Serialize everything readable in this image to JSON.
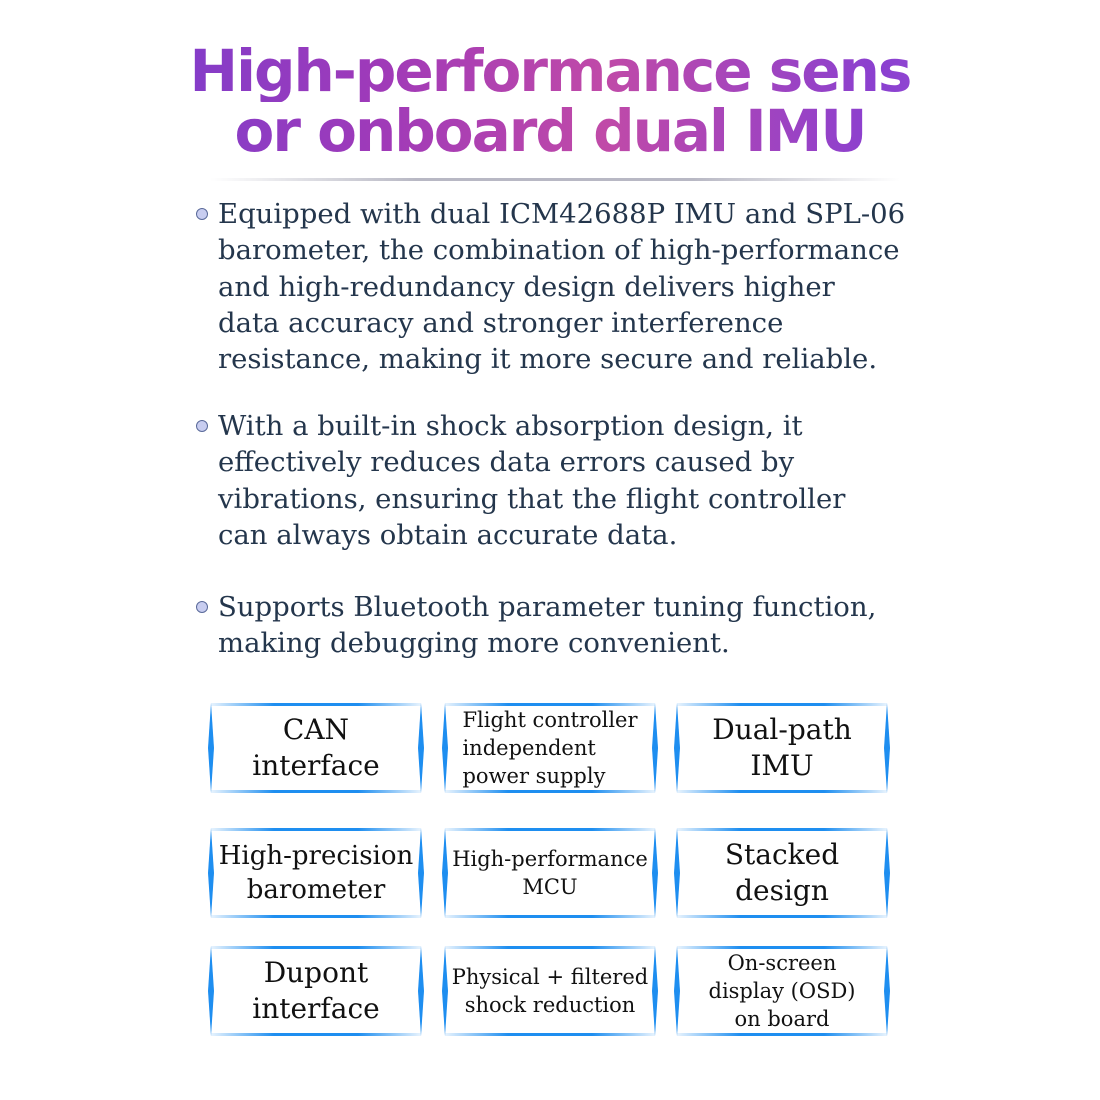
{
  "title": {
    "line1": "High-performance sens",
    "line2": "or onboard dual IMU"
  },
  "bullets": [
    [
      "Equipped with dual ICM42688P IMU and SPL-06",
      "barometer, the combination of high-performance",
      "and high-redundancy design delivers higher",
      "data accuracy and stronger interference",
      "resistance, making it more secure and reliable."
    ],
    [
      "With a built-in shock absorption design, it",
      "effectively reduces data errors caused by",
      "vibrations, ensuring that the flight controller",
      "can always obtain accurate data."
    ],
    [
      "Supports Bluetooth parameter tuning function,",
      "making debugging more convenient."
    ]
  ],
  "features": [
    [
      "CAN",
      "interface"
    ],
    [
      "Flight controller",
      "independent",
      "power supply"
    ],
    [
      "Dual-path",
      "IMU"
    ],
    [
      "High-precision",
      "barometer"
    ],
    [
      "High-performance",
      "MCU"
    ],
    [
      "Stacked",
      "design"
    ],
    [
      "Dupont",
      "interface"
    ],
    [
      "Physical + filtered",
      "shock reduction"
    ],
    [
      "On-screen",
      "display (OSD)",
      "on board"
    ]
  ],
  "colors": {
    "accent": "#1e8ef0",
    "text": "#24364c",
    "title_gradient": [
      "#6a3fd8",
      "#c04aa8"
    ]
  }
}
